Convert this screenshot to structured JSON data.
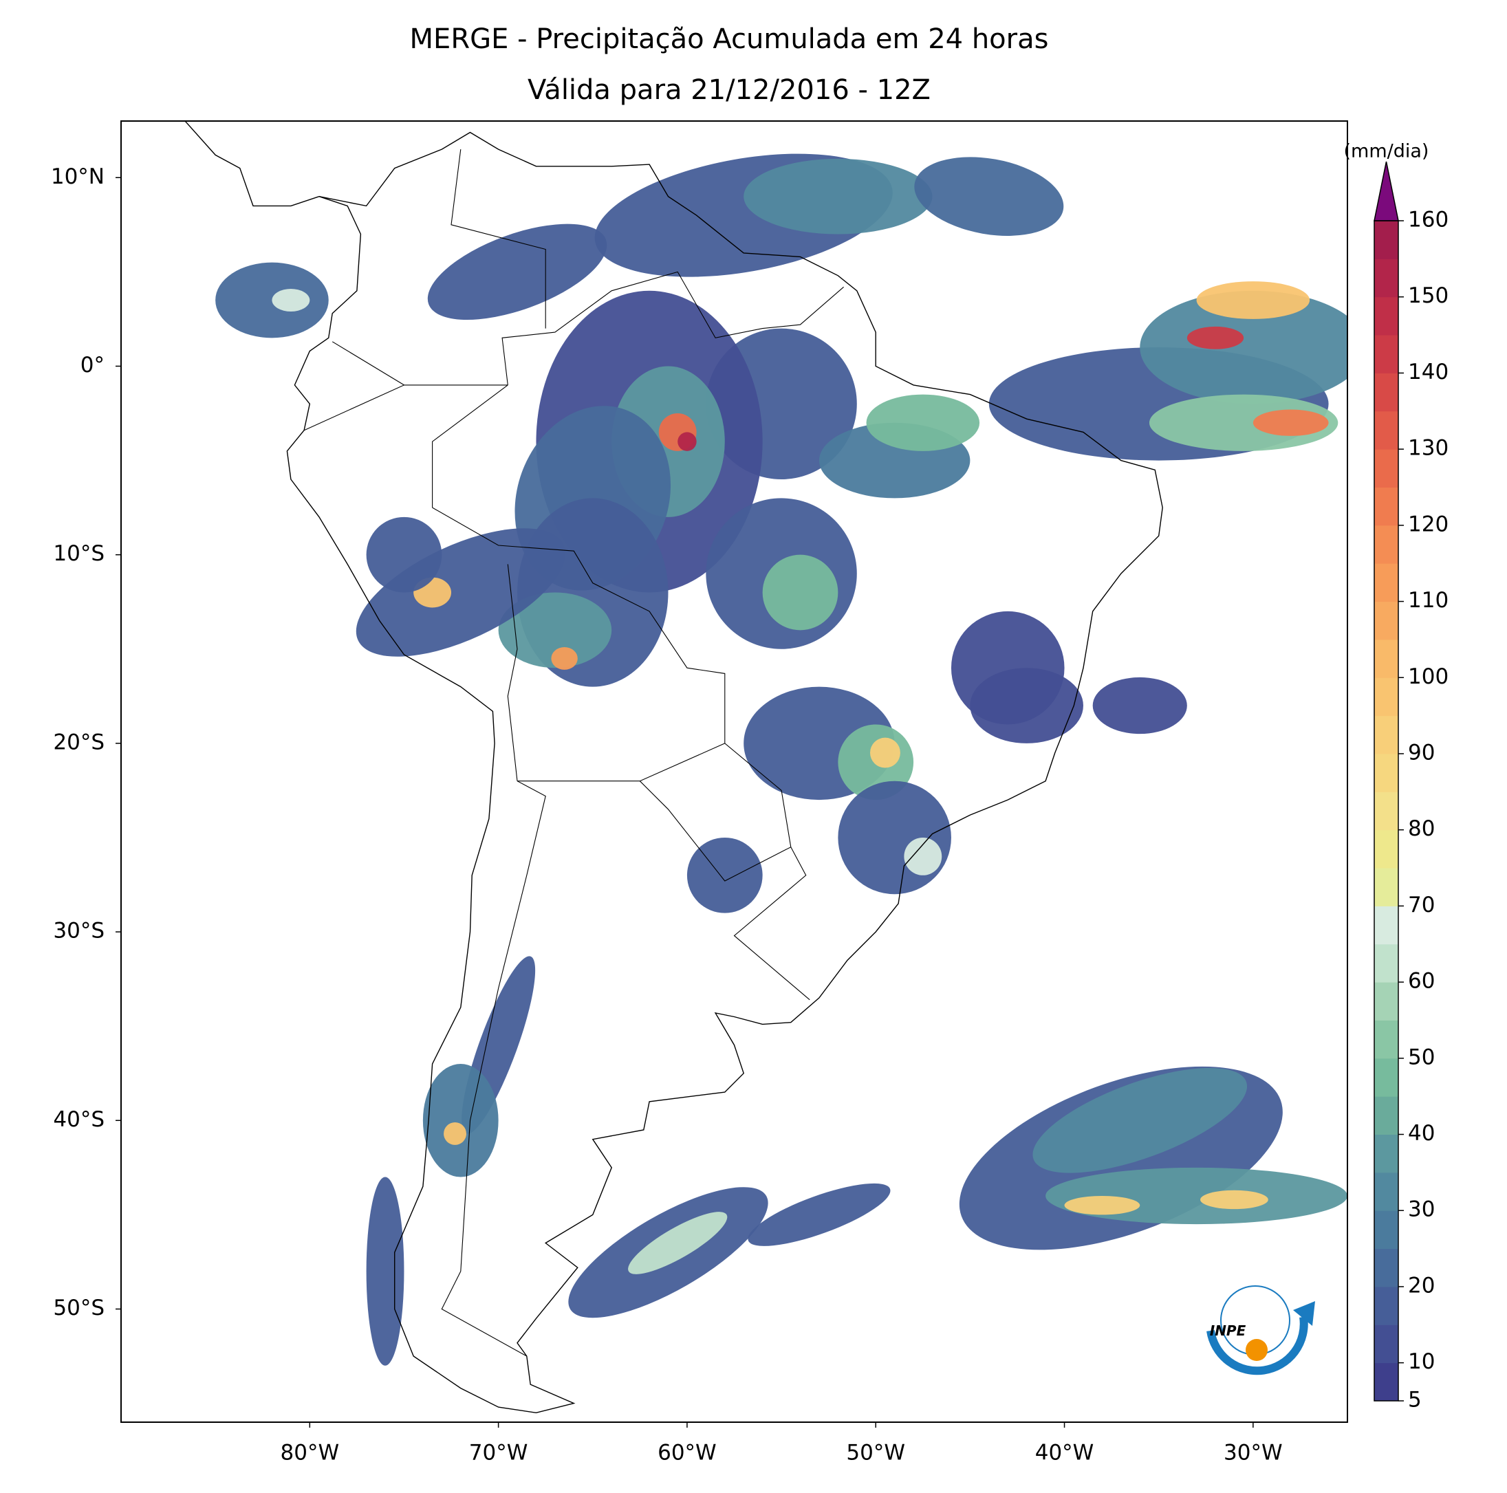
{
  "chart_data": {
    "type": "map",
    "title": "MERGE - Precipitação Acumulada em 24 horas",
    "subtitle": "Válida para 21/12/2016 - 12Z",
    "xlim": [
      -90,
      -25
    ],
    "ylim": [
      -56,
      13
    ],
    "xticks": [
      {
        "value": -80,
        "label": "80°W"
      },
      {
        "value": -70,
        "label": "70°W"
      },
      {
        "value": -60,
        "label": "60°W"
      },
      {
        "value": -50,
        "label": "50°W"
      },
      {
        "value": -40,
        "label": "40°W"
      },
      {
        "value": -30,
        "label": "30°W"
      }
    ],
    "yticks": [
      {
        "value": 10,
        "label": "10°N"
      },
      {
        "value": 0,
        "label": "0°"
      },
      {
        "value": -10,
        "label": "10°S"
      },
      {
        "value": -20,
        "label": "20°S"
      },
      {
        "value": -30,
        "label": "30°S"
      },
      {
        "value": -40,
        "label": "40°S"
      },
      {
        "value": -50,
        "label": "50°S"
      }
    ],
    "colorbar": {
      "label": "(mm/dia)",
      "lim": [
        5,
        160
      ],
      "ticks": [
        5,
        10,
        20,
        30,
        40,
        50,
        60,
        70,
        80,
        90,
        100,
        110,
        120,
        130,
        140,
        150,
        160
      ],
      "colors": [
        "#3e3f8c",
        "#434f93",
        "#465e98",
        "#486c9b",
        "#4b7b9d",
        "#52899f",
        "#5c989f",
        "#6aab9b",
        "#77bb9d",
        "#8ac6a5",
        "#a5d3b5",
        "#c1e2cc",
        "#d8ebe0",
        "#e5ec9a",
        "#eee88c",
        "#f3e08a",
        "#f6d77f",
        "#f8cf79",
        "#f9c470",
        "#f9ba69",
        "#f8aa60",
        "#f79c59",
        "#f48d54",
        "#f07c4f",
        "#ea6b4b",
        "#e25b49",
        "#d84a47",
        "#cc3b47",
        "#c02f48",
        "#b2254a",
        "#a31e4c"
      ],
      "extend_color": "#7b0a7c"
    },
    "logo": "INPE"
  }
}
